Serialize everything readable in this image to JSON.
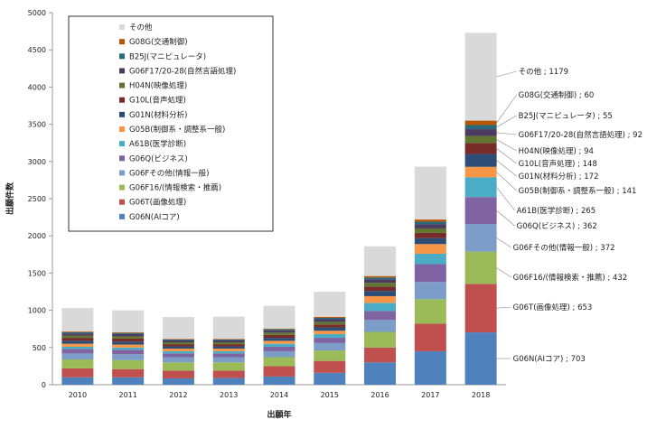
{
  "chart_data": {
    "type": "bar",
    "stacked": true,
    "xlabel": "出願年",
    "ylabel": "出願件数",
    "ylim": [
      0,
      5000
    ],
    "yticks": [
      0,
      500,
      1000,
      1500,
      2000,
      2500,
      3000,
      3500,
      4000,
      4500,
      5000
    ],
    "grid": false,
    "legend_position": "top-left",
    "categories": [
      "2010",
      "2011",
      "2012",
      "2013",
      "2014",
      "2015",
      "2016",
      "2017",
      "2018"
    ],
    "series": [
      {
        "name": "G06N(AIコア)",
        "color": "#4f81bd",
        "values": [
          100,
          100,
          85,
          90,
          110,
          160,
          300,
          450,
          703
        ]
      },
      {
        "name": "G06T(画像処理)",
        "color": "#c0504d",
        "values": [
          120,
          110,
          105,
          100,
          140,
          160,
          200,
          370,
          653
        ]
      },
      {
        "name": "G06F16/(情報検索・推薦)",
        "color": "#9bbb59",
        "values": [
          120,
          120,
          110,
          110,
          120,
          140,
          210,
          330,
          432
        ]
      },
      {
        "name": "G06Fその他(情報一般)",
        "color": "#7d9dc9",
        "values": [
          80,
          80,
          70,
          70,
          80,
          100,
          160,
          230,
          372
        ]
      },
      {
        "name": "G06Q(ビジネス)",
        "color": "#8064a2",
        "values": [
          60,
          60,
          50,
          50,
          60,
          70,
          120,
          240,
          362
        ]
      },
      {
        "name": "A61B(医学診断)",
        "color": "#4bacc6",
        "values": [
          30,
          30,
          30,
          30,
          40,
          50,
          110,
          140,
          265
        ]
      },
      {
        "name": "G05B(制御系・調整系一般)",
        "color": "#f79646",
        "values": [
          40,
          40,
          35,
          35,
          40,
          45,
          90,
          130,
          141
        ]
      },
      {
        "name": "G01N(材料分析)",
        "color": "#2c4d75",
        "values": [
          40,
          40,
          30,
          30,
          40,
          45,
          70,
          80,
          172
        ]
      },
      {
        "name": "G10L(音声処理)",
        "color": "#772c2a",
        "values": [
          40,
          40,
          30,
          30,
          40,
          40,
          60,
          70,
          148
        ]
      },
      {
        "name": "H04N(映像処理)",
        "color": "#5f7530",
        "values": [
          30,
          30,
          25,
          25,
          30,
          35,
          50,
          60,
          94
        ]
      },
      {
        "name": "G06F17/20-28(自然言語処理)",
        "color": "#4d3b62",
        "values": [
          30,
          30,
          25,
          25,
          30,
          35,
          45,
          55,
          92
        ]
      },
      {
        "name": "B25J(マニピュレータ)",
        "color": "#276a7c",
        "values": [
          15,
          15,
          12,
          12,
          15,
          18,
          25,
          35,
          55
        ]
      },
      {
        "name": "G08G(交通制御)",
        "color": "#b65708",
        "values": [
          10,
          10,
          8,
          8,
          10,
          12,
          20,
          30,
          60
        ]
      },
      {
        "name": "その他",
        "color": "#d9d9d9",
        "values": [
          315,
          295,
          295,
          300,
          305,
          340,
          400,
          710,
          1179
        ]
      }
    ],
    "annotations_2018": [
      "G06N(AIコア) ; 703",
      "G06T(画像処理) ; 653",
      "G06F16/(情報検索・推薦) ; 432",
      "G06Fその他(情報一般) ; 372",
      "G06Q(ビジネス) ; 362",
      "A61B(医学診断) ; 265",
      "G05B(制御系・調整系一般) ; 141",
      "G01N(材料分析) ; 172",
      "G10L(音声処理) ; 148",
      "H04N(映像処理) ; 94",
      "G06F17/20-28(自然言語処理) ; 92",
      "B25J(マニピュレータ) ; 55",
      "G08G(交通制御) ; 60",
      "その他 ; 1179"
    ]
  }
}
